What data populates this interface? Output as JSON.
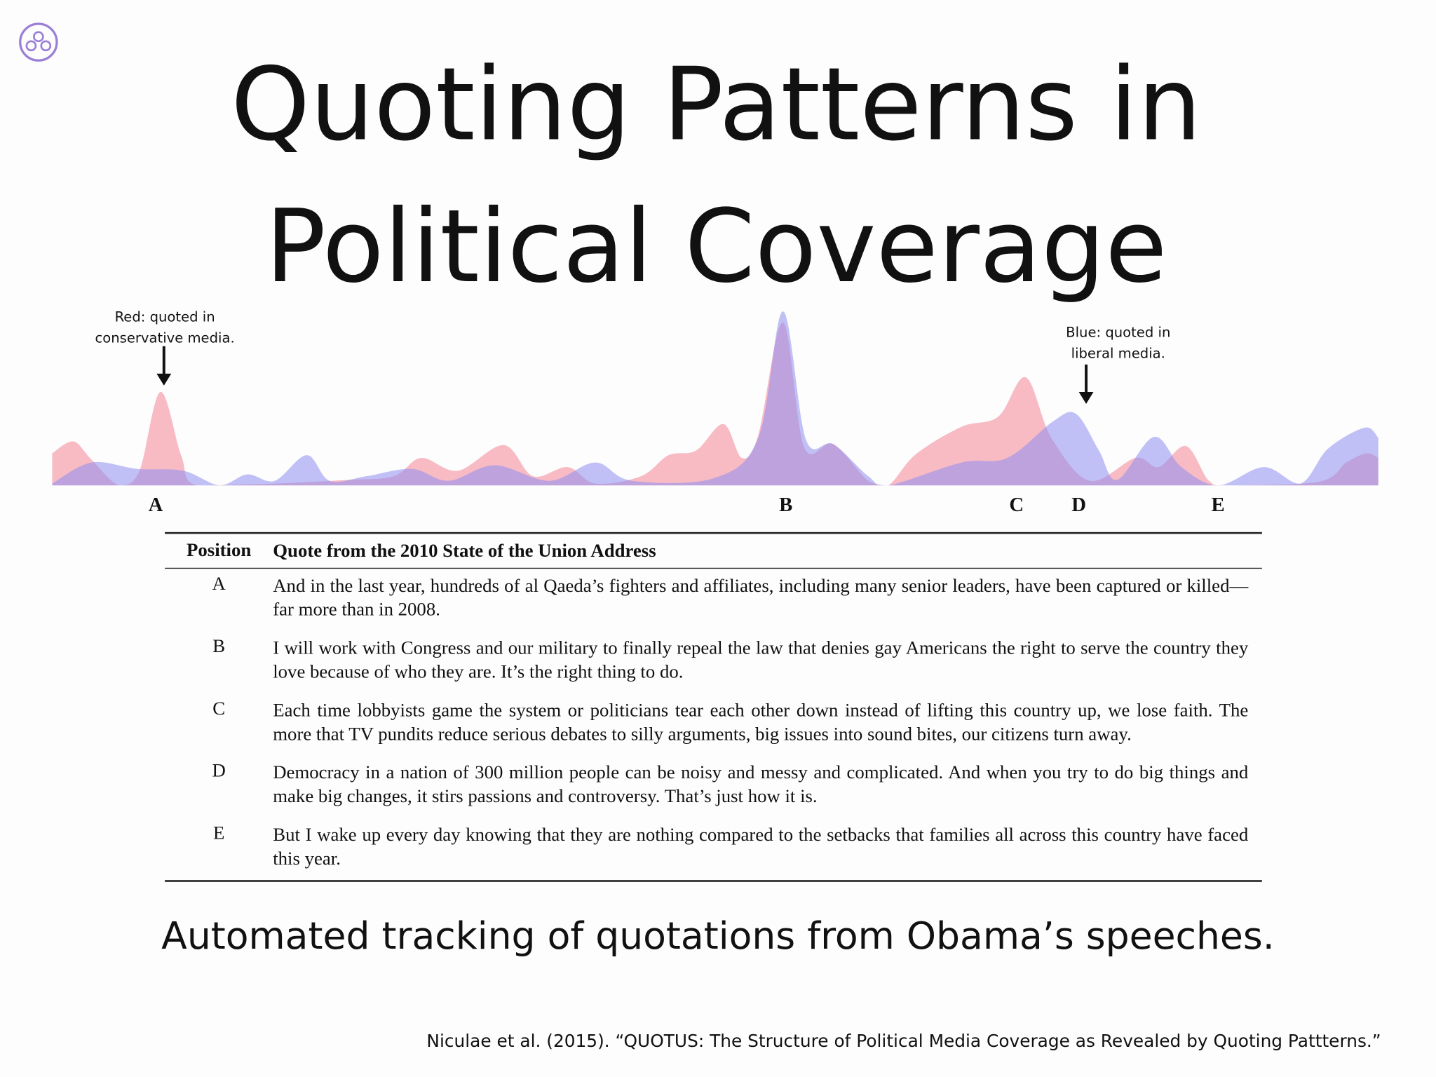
{
  "header": {
    "title_lines": [
      "Quoting Patterns in",
      "Political Coverage"
    ]
  },
  "annotations": {
    "red": [
      "Red: quoted in",
      "conservative media."
    ],
    "blue": [
      "Blue: quoted in",
      "liberal media."
    ]
  },
  "positions": [
    "A",
    "B",
    "C",
    "D",
    "E"
  ],
  "table": {
    "columns": [
      "Position",
      "Quote from the 2010 State of the Union Address"
    ],
    "rows": [
      [
        "A",
        "And in the last year, hundreds of al Qaeda’s fighters and affiliates, including many senior leaders, have been captured or killed—far more than in 2008."
      ],
      [
        "B",
        "I will work with Congress and our military to finally repeal the law that denies gay Americans the right to serve the country they love because of who they are. It’s the right thing to do."
      ],
      [
        "C",
        "Each time lobbyists game the system or politicians tear each other down instead of lifting this country up, we lose faith. The more that TV pundits reduce serious debates to silly arguments, big issues into sound bites, our citizens turn away."
      ],
      [
        "D",
        "Democracy in a nation of 300 million people can be noisy and messy and complicated.  And when you try to do big things and make big changes, it stirs passions and controversy. That’s just how it is."
      ],
      [
        "E",
        "But I wake up every day knowing that they are nothing compared to the setbacks that families all across this country have faced this year."
      ]
    ]
  },
  "caption": "Automated tracking of quotations from Obama’s speeches.",
  "citation": "Niculae et al. (2015). “QUOTUS: The Structure of Political Media Coverage as Revealed by Quoting Pattterns.”"
}
